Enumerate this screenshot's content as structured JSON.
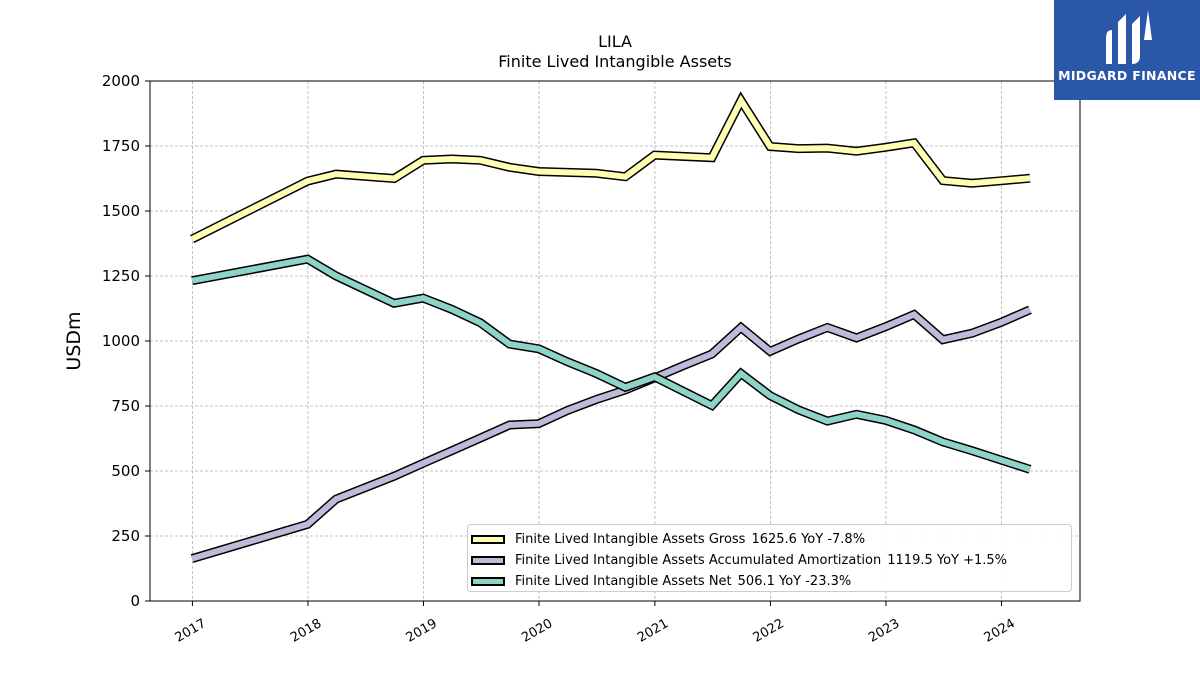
{
  "brand": {
    "logo_text": "MIDGARD FINANCE",
    "logo_bg": "#2b57a8"
  },
  "chart_data": {
    "type": "line",
    "title": "LILA",
    "subtitle": "Finite Lived Intangible Assets",
    "xlabel": "",
    "ylabel": "USDm",
    "ylim": [
      0,
      2000
    ],
    "yticks": [
      0,
      250,
      500,
      750,
      1000,
      1250,
      1500,
      1750,
      2000
    ],
    "xlim": [
      "2016-08-20",
      "2024-09-05"
    ],
    "xticks": [
      "2017",
      "2018",
      "2019",
      "2020",
      "2021",
      "2022",
      "2023",
      "2024"
    ],
    "grid": true,
    "legend_position": "lower-right",
    "series": [
      {
        "name": "Finite Lived Intangible Assets Gross",
        "latest": "1625.6 YoY -7.8%",
        "color": "#ffffb3",
        "x": [
          "2016-12-31",
          "2017-12-31",
          "2018-03-31",
          "2018-09-30",
          "2018-12-31",
          "2019-03-31",
          "2019-06-30",
          "2019-09-30",
          "2019-12-31",
          "2020-06-30",
          "2020-09-30",
          "2020-12-31",
          "2021-06-30",
          "2021-09-30",
          "2021-12-31",
          "2022-03-31",
          "2022-06-30",
          "2022-09-30",
          "2022-12-31",
          "2023-03-31",
          "2023-06-30",
          "2023-09-30",
          "2023-12-31",
          "2024-03-31"
        ],
        "values": [
          1392,
          1615,
          1642,
          1625,
          1695,
          1700,
          1695,
          1668,
          1652,
          1645,
          1632,
          1715,
          1705,
          1925,
          1748,
          1740,
          1742,
          1730,
          1745,
          1762,
          1617,
          1607,
          1616,
          1626
        ]
      },
      {
        "name": "Finite Lived Intangible Assets Accumulated Amortization",
        "latest": "1119.5 YoY +1.5%",
        "color": "#bebada",
        "x": [
          "2016-12-31",
          "2017-12-31",
          "2018-03-31",
          "2018-09-30",
          "2018-12-31",
          "2019-03-31",
          "2019-06-30",
          "2019-09-30",
          "2019-12-31",
          "2020-03-31",
          "2020-06-30",
          "2020-09-30",
          "2020-12-31",
          "2021-03-31",
          "2021-06-30",
          "2021-09-30",
          "2021-12-31",
          "2022-03-31",
          "2022-06-30",
          "2022-09-30",
          "2022-12-31",
          "2023-03-31",
          "2023-06-30",
          "2023-09-30",
          "2023-12-31",
          "2024-03-31"
        ],
        "values": [
          163,
          295,
          392,
          480,
          530,
          578,
          627,
          677,
          682,
          733,
          775,
          812,
          858,
          905,
          950,
          1052,
          960,
          1008,
          1052,
          1012,
          1055,
          1102,
          1005,
          1030,
          1072,
          1120
        ]
      },
      {
        "name": "Finite Lived Intangible Assets Net",
        "latest": "506.1 YoY -23.3%",
        "color": "#8dd3c7",
        "x": [
          "2016-12-31",
          "2017-12-31",
          "2018-03-31",
          "2018-09-30",
          "2018-12-31",
          "2019-03-31",
          "2019-06-30",
          "2019-09-30",
          "2019-12-31",
          "2020-03-31",
          "2020-06-30",
          "2020-09-30",
          "2020-12-31",
          "2021-06-30",
          "2021-09-30",
          "2021-12-31",
          "2022-03-31",
          "2022-06-30",
          "2022-09-30",
          "2022-12-31",
          "2023-03-31",
          "2023-06-30",
          "2023-09-30",
          "2023-12-31",
          "2024-03-31"
        ],
        "values": [
          1232,
          1315,
          1250,
          1145,
          1165,
          1122,
          1070,
          988,
          970,
          920,
          875,
          822,
          862,
          752,
          875,
          790,
          735,
          692,
          718,
          695,
          658,
          612,
          578,
          542,
          506
        ]
      }
    ]
  }
}
